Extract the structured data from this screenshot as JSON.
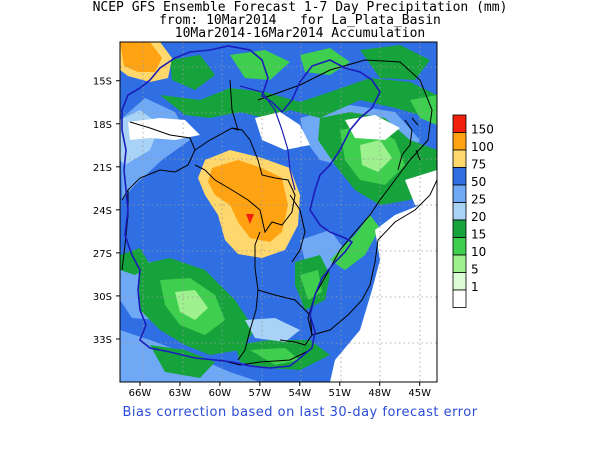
{
  "title": {
    "line1": "NCEP GFS Ensemble Forecast 1-7 Day Precipitation (mm)",
    "line2": "from: 10Mar2014   for La_Plata_Basin",
    "line3": "10Mar2014-16Mar2014 Accumulation"
  },
  "y_axis": {
    "labels": [
      "15S",
      "18S",
      "21S",
      "24S",
      "27S",
      "30S",
      "33S"
    ],
    "values": [
      -15,
      -18,
      -21,
      -24,
      -27,
      -30,
      -33
    ],
    "range": [
      -36,
      -12.3
    ]
  },
  "x_axis": {
    "labels": [
      "66W",
      "63W",
      "60W",
      "57W",
      "54W",
      "51W",
      "48W",
      "45W"
    ],
    "values": [
      -66,
      -63,
      -60,
      -57,
      -54,
      -51,
      -48,
      -45
    ],
    "range": [
      -67.5,
      -43.7
    ]
  },
  "legend": {
    "levels": [
      "150",
      "100",
      "75",
      "50",
      "25",
      "20",
      "15",
      "10",
      "5",
      "1"
    ],
    "colors": [
      "#f21f0d",
      "#ffa313",
      "#ffd86d",
      "#2f6fe3",
      "#6fa8f5",
      "#a8d3f7",
      "#17a33c",
      "#3fcf4f",
      "#9ff08f",
      "#dcfcd5",
      "#ffffff"
    ]
  },
  "footer": "Bias correction based on last 30-day forecast error"
}
